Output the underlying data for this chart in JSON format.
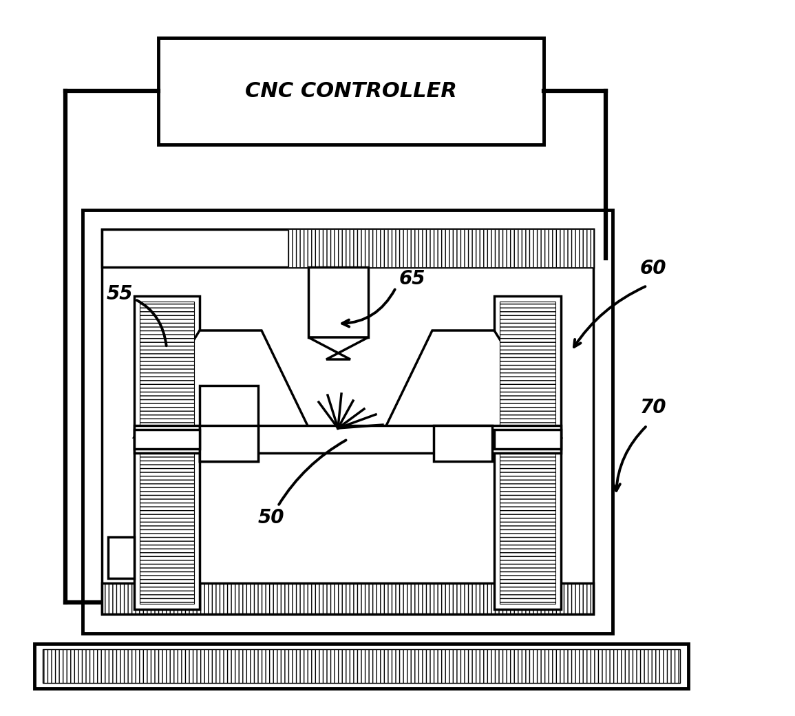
{
  "title": "CNC CONTROLLER",
  "label_55": "55",
  "label_60": "60",
  "label_65": "65",
  "label_70": "70",
  "label_50": "50",
  "bg_color": "#ffffff",
  "line_color": "#000000",
  "font_size_title": 22,
  "font_size_labels": 20
}
